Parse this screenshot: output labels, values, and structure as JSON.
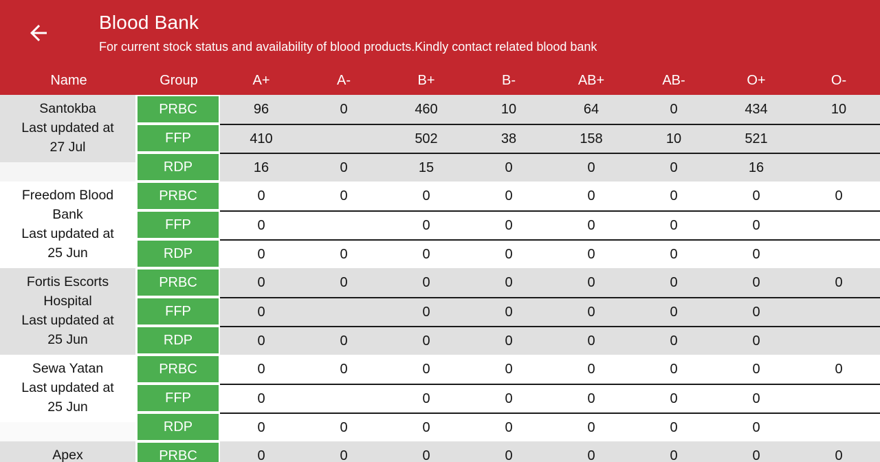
{
  "app": {
    "header": {
      "back_icon": "arrow-left-icon",
      "title": "Blood Bank",
      "subtitle": "For current stock status and availability of blood products.Kindly contact related blood bank"
    },
    "colors": {
      "primary_red": "#C3272E",
      "group_green": "#4CAF50",
      "stripe_gray": "#E0E0E0",
      "row_separator": "#1A1A1A"
    }
  },
  "table": {
    "columns": [
      "Name",
      "Group",
      "A+",
      "A-",
      "B+",
      "B-",
      "AB+",
      "AB-",
      "O+",
      "O-"
    ],
    "banks": [
      {
        "name_lines": [
          "Santokba",
          "Last updated at",
          "27 Jul"
        ],
        "rows": [
          {
            "group": "PRBC",
            "values": [
              "96",
              "0",
              "460",
              "10",
              "64",
              "0",
              "434",
              "10"
            ]
          },
          {
            "group": "FFP",
            "values": [
              "410",
              "",
              "502",
              "38",
              "158",
              "10",
              "521",
              ""
            ]
          },
          {
            "group": "RDP",
            "values": [
              "16",
              "0",
              "15",
              "0",
              "0",
              "0",
              "16",
              ""
            ]
          }
        ]
      },
      {
        "name_lines": [
          "Freedom Blood",
          "Bank",
          "Last updated at",
          "25 Jun"
        ],
        "rows": [
          {
            "group": "PRBC",
            "values": [
              "0",
              "0",
              "0",
              "0",
              "0",
              "0",
              "0",
              "0"
            ]
          },
          {
            "group": "FFP",
            "values": [
              "0",
              "",
              "0",
              "0",
              "0",
              "0",
              "0",
              ""
            ]
          },
          {
            "group": "RDP",
            "values": [
              "0",
              "0",
              "0",
              "0",
              "0",
              "0",
              "0",
              ""
            ]
          }
        ]
      },
      {
        "name_lines": [
          "Fortis Escorts",
          "Hospital",
          "Last updated at",
          "25 Jun"
        ],
        "rows": [
          {
            "group": "PRBC",
            "values": [
              "0",
              "0",
              "0",
              "0",
              "0",
              "0",
              "0",
              "0"
            ]
          },
          {
            "group": "FFP",
            "values": [
              "0",
              "",
              "0",
              "0",
              "0",
              "0",
              "0",
              ""
            ]
          },
          {
            "group": "RDP",
            "values": [
              "0",
              "0",
              "0",
              "0",
              "0",
              "0",
              "0",
              ""
            ]
          }
        ]
      },
      {
        "name_lines": [
          "Sewa Yatan",
          "Last updated at",
          "25 Jun"
        ],
        "rows": [
          {
            "group": "PRBC",
            "values": [
              "0",
              "0",
              "0",
              "0",
              "0",
              "0",
              "0",
              "0"
            ]
          },
          {
            "group": "FFP",
            "values": [
              "0",
              "",
              "0",
              "0",
              "0",
              "0",
              "0",
              ""
            ]
          },
          {
            "group": "RDP",
            "values": [
              "0",
              "0",
              "0",
              "0",
              "0",
              "0",
              "0",
              ""
            ]
          }
        ]
      },
      {
        "name_lines": [
          "Apex"
        ],
        "rows": [
          {
            "group": "PRBC",
            "values": [
              "0",
              "0",
              "0",
              "0",
              "0",
              "0",
              "0",
              "0"
            ]
          }
        ]
      }
    ]
  }
}
